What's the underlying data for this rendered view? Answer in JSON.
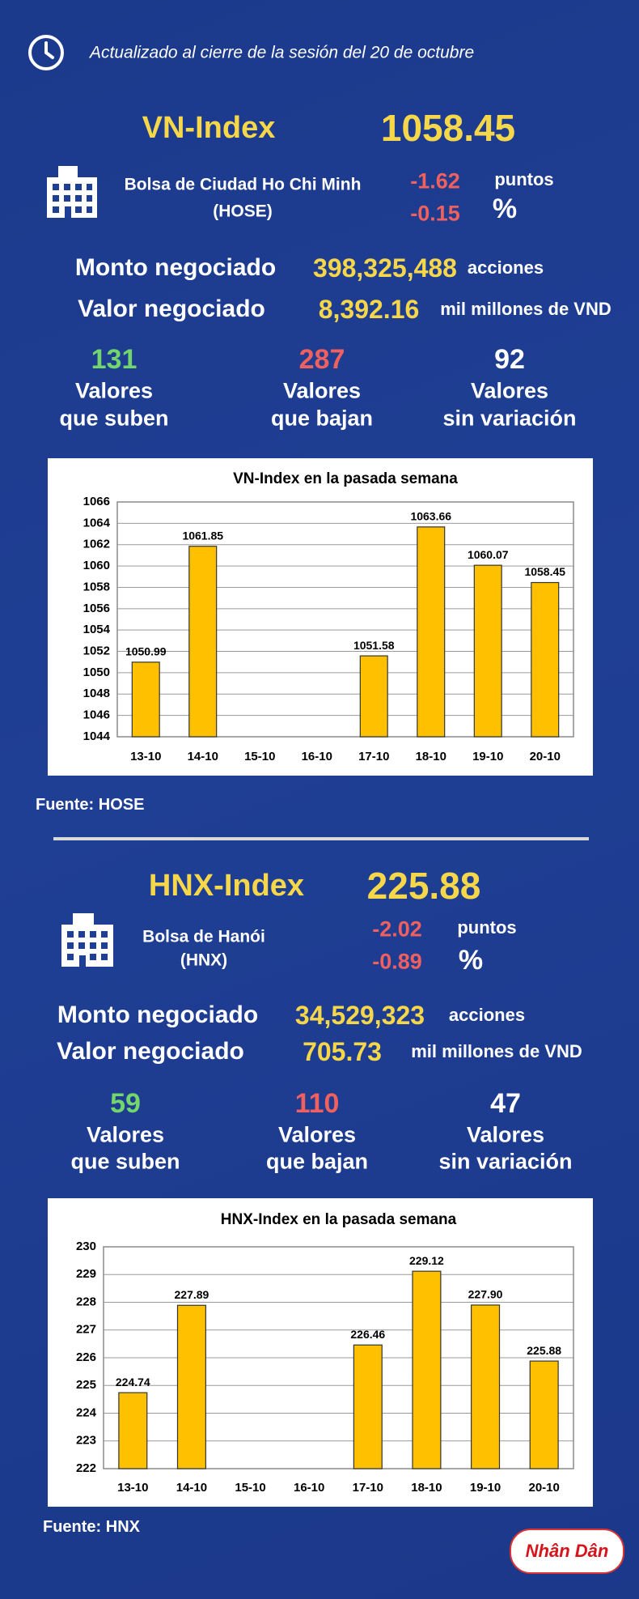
{
  "header": {
    "updated": "Actualizado al cierre de la sesión del 20 de octubre"
  },
  "sections": [
    {
      "index_name": "VN-Index",
      "index_value": "1058.45",
      "exchange": "Bolsa de Ciudad Ho Chi Minh",
      "exchange_code": "(HOSE)",
      "change_points": "-1.62",
      "points_unit": "puntos",
      "change_percent": "-0.15",
      "percent_unit": "%",
      "volume_label": "Monto negociado",
      "volume": "398,325,488",
      "volume_unit": "acciones",
      "value_label": "Valor negociado",
      "value": "8,392.16",
      "value_unit": "mil millones de VND",
      "up_count": "131",
      "up_label": [
        "Valores",
        "que suben"
      ],
      "down_count": "287",
      "down_label": [
        "Valores",
        "que bajan"
      ],
      "flat_count": "92",
      "flat_label": [
        "Valores",
        "sin variación"
      ],
      "source": "Fuente: HOSE"
    },
    {
      "index_name": "HNX-Index",
      "index_value": "225.88",
      "exchange": "Bolsa de Hanói",
      "exchange_code": "(HNX)",
      "change_points": "-2.02",
      "points_unit": "puntos",
      "change_percent": "-0.89",
      "percent_unit": "%",
      "volume_label": "Monto negociado",
      "volume": "34,529,323",
      "volume_unit": "acciones",
      "value_label": "Valor negociado",
      "value": "705.73",
      "value_unit": "mil millones de VND",
      "up_count": "59",
      "up_label": [
        "Valores",
        "que suben"
      ],
      "down_count": "110",
      "down_label": [
        "Valores",
        "que bajan"
      ],
      "flat_count": "47",
      "flat_label": [
        "Valores",
        "sin variación"
      ],
      "source": "Fuente: HNX"
    }
  ],
  "chart_data": [
    {
      "type": "bar",
      "title": "VN-Index en la pasada semana",
      "categories": [
        "13-10",
        "14-10",
        "15-10",
        "16-10",
        "17-10",
        "18-10",
        "19-10",
        "20-10"
      ],
      "values": [
        1050.99,
        1061.85,
        null,
        null,
        1051.58,
        1063.66,
        1060.07,
        1058.45
      ],
      "color": "#ffc000",
      "ylim": [
        1044,
        1066
      ],
      "yticks": [
        1044,
        1046,
        1048,
        1050,
        1052,
        1054,
        1056,
        1058,
        1060,
        1062,
        1064,
        1066
      ],
      "grid": true
    },
    {
      "type": "bar",
      "title": "HNX-Index en la pasada semana",
      "categories": [
        "13-10",
        "14-10",
        "15-10",
        "16-10",
        "17-10",
        "18-10",
        "19-10",
        "20-10"
      ],
      "values": [
        224.74,
        227.89,
        null,
        null,
        226.46,
        229.12,
        227.9,
        225.88
      ],
      "value_labels": [
        "224.74",
        "227.89",
        null,
        null,
        "226.46",
        "229.12",
        "227.90",
        "225.88"
      ],
      "color": "#ffc000",
      "ylim": [
        222,
        230
      ],
      "yticks": [
        222,
        223,
        224,
        225,
        226,
        227,
        228,
        229,
        230
      ],
      "grid": true
    }
  ],
  "logo": "Nhân Dân"
}
